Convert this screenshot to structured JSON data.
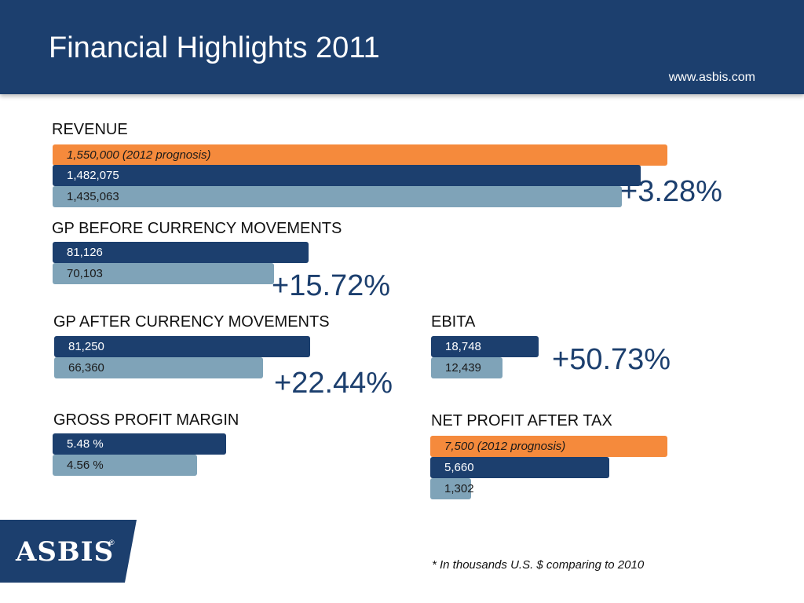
{
  "header": {
    "title": "Financial Highlights 2011",
    "url": "www.asbis.com",
    "background_color": "#1c3f6e"
  },
  "colors": {
    "prognosis": "#f58a3c",
    "year_2011": "#1c3f6e",
    "year_2010": "#7fa3b8"
  },
  "chart_data": [
    {
      "type": "bar",
      "orientation": "horizontal",
      "title": "REVENUE",
      "series": [
        {
          "label": "1,550,000 (2012 prognosis)",
          "value": 1550000,
          "style": "prognosis"
        },
        {
          "label": "1,482,075",
          "value": 1482075,
          "style": "year_2011"
        },
        {
          "label": "1,435,063",
          "value": 1435063,
          "style": "year_2010"
        }
      ],
      "change": "+3.28%"
    },
    {
      "type": "bar",
      "orientation": "horizontal",
      "title": "GP BEFORE CURRENCY MOVEMENTS",
      "series": [
        {
          "label": "81,126",
          "value": 81126,
          "style": "year_2011"
        },
        {
          "label": "70,103",
          "value": 70103,
          "style": "year_2010"
        }
      ],
      "change": "+15.72%"
    },
    {
      "type": "bar",
      "orientation": "horizontal",
      "title": "GP AFTER CURRENCY MOVEMENTS",
      "series": [
        {
          "label": "81,250",
          "value": 81250,
          "style": "year_2011"
        },
        {
          "label": "66,360",
          "value": 66360,
          "style": "year_2010"
        }
      ],
      "change": "+22.44%"
    },
    {
      "type": "bar",
      "orientation": "horizontal",
      "title": "EBITA",
      "series": [
        {
          "label": "18,748",
          "value": 18748,
          "style": "year_2011"
        },
        {
          "label": "12,439",
          "value": 12439,
          "style": "year_2010"
        }
      ],
      "change": "+50.73%"
    },
    {
      "type": "bar",
      "orientation": "horizontal",
      "title": "GROSS PROFIT MARGIN",
      "series": [
        {
          "label": "5.48 %",
          "value": 5.48,
          "style": "year_2011"
        },
        {
          "label": "4.56 %",
          "value": 4.56,
          "style": "year_2010"
        }
      ]
    },
    {
      "type": "bar",
      "orientation": "horizontal",
      "title": "NET PROFIT AFTER TAX",
      "series": [
        {
          "label": "7,500 (2012 prognosis)",
          "value": 7500,
          "style": "prognosis"
        },
        {
          "label": "5,660",
          "value": 5660,
          "style": "year_2011"
        },
        {
          "label": "1,302",
          "value": 1302,
          "style": "year_2010"
        }
      ]
    }
  ],
  "logo": {
    "text": "ASBIS",
    "mark": "®"
  },
  "footnote": "* In thousands U.S. $ comparing to 2010"
}
